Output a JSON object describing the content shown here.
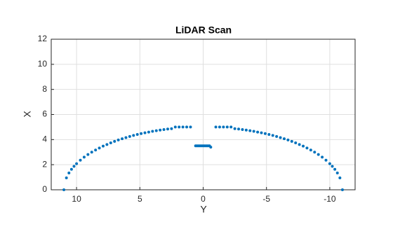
{
  "chart_data": {
    "type": "scatter",
    "title": "LiDAR Scan",
    "x_label": "Y",
    "y_label": "X",
    "x": [
      11,
      10.8,
      10.6,
      10.4,
      10.2,
      10,
      9.7,
      9.4,
      9.1,
      8.8,
      8.5,
      8.2,
      7.9,
      7.6,
      7.3,
      7,
      6.7,
      6.4,
      6.1,
      5.8,
      5.5,
      5.2,
      4.9,
      4.6,
      4.3,
      4,
      3.7,
      3.4,
      3.1,
      2.8,
      2.5,
      2.2,
      1.9,
      1.6,
      1.3,
      1,
      0.6,
      0.5,
      0.4,
      0.3,
      0.2,
      0.1,
      0,
      -0.1,
      -0.2,
      -0.3,
      -0.4,
      -0.5,
      -0.6,
      -1,
      -1.3,
      -1.6,
      -1.9,
      -2.2,
      -2.5,
      -2.8,
      -3.1,
      -3.4,
      -3.7,
      -4,
      -4.3,
      -4.6,
      -4.9,
      -5.2,
      -5.5,
      -5.8,
      -6.1,
      -6.4,
      -6.7,
      -7,
      -7.3,
      -7.6,
      -7.9,
      -8.2,
      -8.5,
      -8.8,
      -9.1,
      -9.4,
      -9.7,
      -10,
      -10.2,
      -10.4,
      -10.6,
      -10.8,
      -11
    ],
    "values": [
      0,
      0.95,
      1.34,
      1.63,
      1.87,
      2.08,
      2.36,
      2.6,
      2.81,
      3,
      3.17,
      3.33,
      3.48,
      3.61,
      3.74,
      3.86,
      3.97,
      4.07,
      4.16,
      4.25,
      4.33,
      4.41,
      4.48,
      4.54,
      4.6,
      4.66,
      4.71,
      4.76,
      4.8,
      4.84,
      4.87,
      5,
      5,
      5,
      5,
      5,
      3.5,
      3.5,
      3.5,
      3.5,
      3.5,
      3.5,
      3.5,
      3.5,
      3.5,
      3.5,
      3.5,
      3.5,
      3.4,
      5,
      5,
      5,
      5,
      5,
      4.87,
      4.84,
      4.8,
      4.76,
      4.71,
      4.66,
      4.6,
      4.54,
      4.48,
      4.41,
      4.33,
      4.25,
      4.16,
      4.07,
      3.97,
      3.86,
      3.74,
      3.61,
      3.48,
      3.33,
      3.17,
      3,
      2.81,
      2.6,
      2.36,
      2.08,
      1.87,
      1.63,
      1.34,
      0.95,
      0
    ],
    "color": "#0072bd",
    "xlim": [
      12,
      -12
    ],
    "xticks": [
      10,
      5,
      0,
      -5,
      -10
    ],
    "ylim": [
      0,
      12
    ],
    "yticks": [
      0,
      2,
      4,
      6,
      8,
      10,
      12
    ],
    "grid": true
  }
}
